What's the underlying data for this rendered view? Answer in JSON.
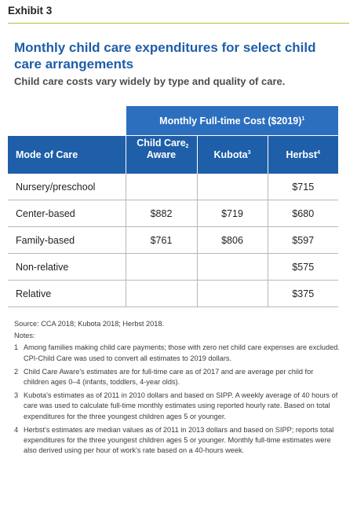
{
  "exhibit": "Exhibit 3",
  "title": "Monthly child care expenditures for select child care arrangements",
  "subtitle": "Child care costs vary widely by type and quality of care.",
  "table": {
    "super_header": "Monthly Full-time Cost ($2019)",
    "super_header_sup": "1",
    "columns": [
      {
        "label": "Mode of Care",
        "sup": ""
      },
      {
        "label": "Child Care Aware",
        "sup": "2"
      },
      {
        "label": "Kubota",
        "sup": "3"
      },
      {
        "label": "Herbst",
        "sup": "4"
      }
    ],
    "rows": [
      {
        "mode": "Nursery/preschool",
        "cca": "",
        "kubota": "",
        "herbst": "$715"
      },
      {
        "mode": "Center-based",
        "cca": "$882",
        "kubota": "$719",
        "herbst": "$680"
      },
      {
        "mode": "Family-based",
        "cca": "$761",
        "kubota": "$806",
        "herbst": "$597"
      },
      {
        "mode": "Non-relative",
        "cca": "",
        "kubota": "",
        "herbst": "$575"
      },
      {
        "mode": "Relative",
        "cca": "",
        "kubota": "",
        "herbst": "$375"
      }
    ]
  },
  "source": "Source: CCA 2018; Kubota 2018; Herbst 2018.",
  "notes_heading": "Notes:",
  "notes": [
    {
      "num": "1",
      "text": "Among families making child care payments; those with zero net child care expenses are excluded. CPI-Child Care was used to convert all estimates to 2019 dollars."
    },
    {
      "num": "2",
      "text": "Child Care Aware's estimates are for full-time care as of 2017 and are average per child for children ages 0–4 (infants, toddlers, 4-year olds)."
    },
    {
      "num": "3",
      "text": "Kubota's estimates as of 2011 in 2010 dollars and based on SIPP. A weekly average of 40 hours of care was used to calculate full-time monthly estimates using reported hourly rate. Based on total expenditures for the three youngest children ages 5 or younger."
    },
    {
      "num": "4",
      "text": "Herbst's estimates are median values as of 2011 in 2013 dollars and based on SIPP; reports total expenditures for the three youngest children ages 5 or younger. Monthly full-time estimates were also derived using per hour of work's rate based on a 40-hours week."
    }
  ]
}
